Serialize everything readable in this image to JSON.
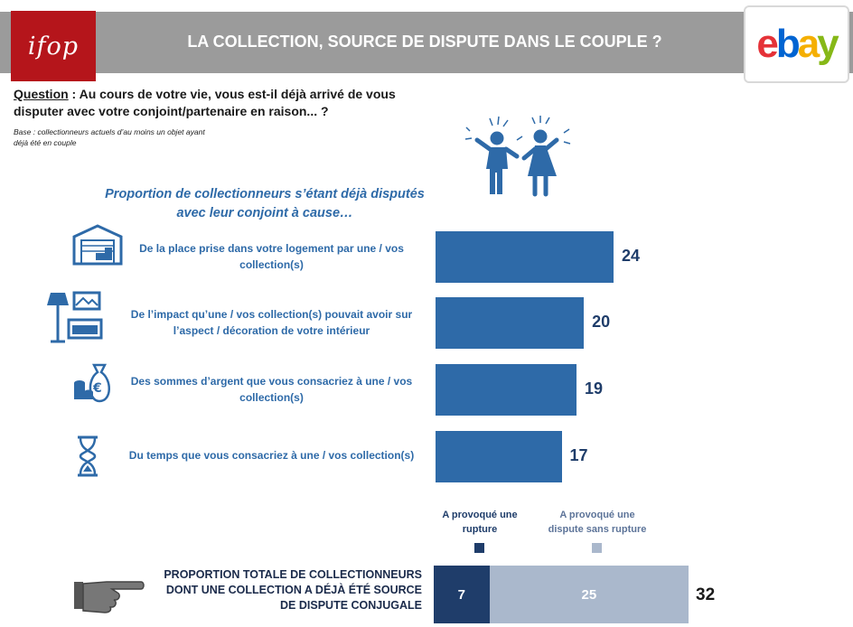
{
  "header": {
    "logo_left": "ifop",
    "title": "LA COLLECTION, SOURCE DE DISPUTE DANS LE COUPLE ?",
    "logo_right": {
      "e": "e",
      "b": "b",
      "a": "a",
      "y": "y"
    }
  },
  "question": {
    "label": "Question",
    "text": " : Au cours de votre vie, vous est-il déjà arrivé de vous disputer avec votre conjoint/partenaire en raison... ?",
    "base": "Base : collectionneurs actuels d’au moins un objet ayant déjà été en couple"
  },
  "section_title": "Proportion de collectionneurs s’étant déjà disputés avec leur conjoint à cause…",
  "icons": [
    "arguing-couple-icon",
    "garage-icon",
    "living-room-icon",
    "money-bag-icon",
    "hourglass-icon",
    "pointing-hand-icon"
  ],
  "colors": {
    "bar": "#2e6aa8",
    "rupture": "#1f3d6a",
    "no_rupture": "#aab8cc",
    "header": "#9b9b9b",
    "ifop": "#b5151b"
  },
  "chart_data": [
    {
      "type": "bar",
      "orientation": "horizontal",
      "categories": [
        "De la place prise dans votre logement par une / vos collection(s)",
        "De l’impact qu’une / vos collection(s) pouvait avoir sur l’aspect / décoration de votre intérieur",
        "Des sommes d’argent que vous consacriez à une / vos collection(s)",
        "Du temps que vous consacriez à une / vos collection(s)"
      ],
      "values": [
        24,
        20,
        19,
        17
      ],
      "value_labels": [
        "24",
        "20",
        "19",
        "17"
      ]
    },
    {
      "type": "bar",
      "stacked": true,
      "orientation": "horizontal",
      "category": "PROPORTION TOTALE DE COLLECTIONNEURS DONT UNE COLLECTION A DÉJÀ ÉTÉ SOURCE DE DISPUTE CONJUGALE",
      "series": [
        {
          "name": "A provoqué une rupture",
          "value": 7,
          "label": "7"
        },
        {
          "name": "A provoqué une dispute sans rupture",
          "value": 25,
          "label": "25"
        }
      ],
      "total": 32,
      "total_label": "32"
    }
  ]
}
